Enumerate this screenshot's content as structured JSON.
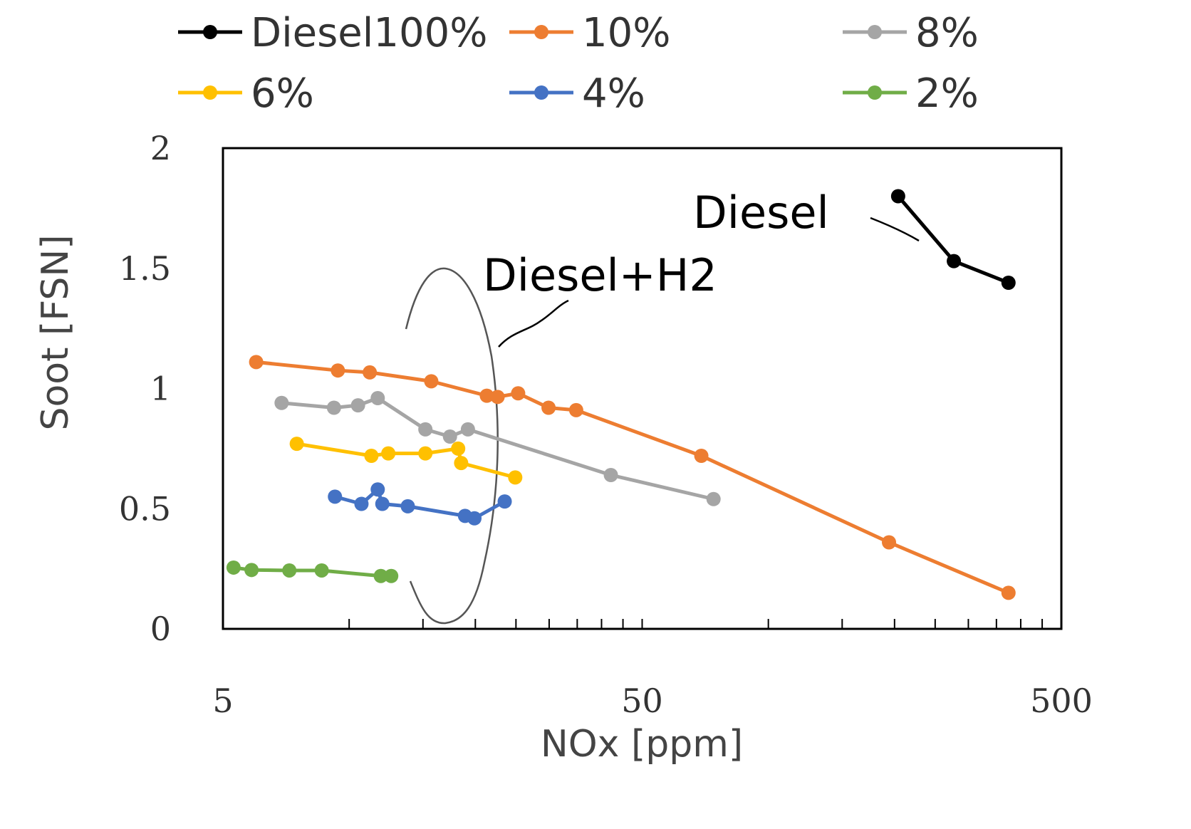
{
  "chart_data": {
    "type": "scatter",
    "xlabel": "NOx [ppm]",
    "ylabel": "Soot [FSN]",
    "xscale": "log",
    "xlim": [
      5,
      500
    ],
    "ylim": [
      0,
      2
    ],
    "xticks": [
      5,
      50,
      500
    ],
    "xtick_labels": [
      "5",
      "50",
      "500"
    ],
    "yticks": [
      0,
      0.5,
      1,
      1.5,
      2
    ],
    "ytick_labels": [
      "0",
      "0.5",
      "1",
      "1.5",
      "2"
    ],
    "grid": false,
    "legend_placement": "top",
    "series": [
      {
        "name": "Diesel100%",
        "color": "#000000",
        "x": [
          204,
          277,
          374
        ],
        "y": [
          1.8,
          1.53,
          1.44
        ]
      },
      {
        "name": "10%",
        "color": "#ED7D31",
        "x": [
          6.0,
          9.4,
          11.2,
          15.7,
          21.3,
          22.6,
          25.3,
          29.9,
          34.8,
          69.2,
          194,
          374
        ],
        "y": [
          1.11,
          1.075,
          1.067,
          1.03,
          0.97,
          0.965,
          0.98,
          0.92,
          0.91,
          0.72,
          0.36,
          0.15
        ]
      },
      {
        "name": "8%",
        "color": "#A5A5A5",
        "x": [
          6.9,
          9.2,
          10.5,
          11.7,
          15.2,
          17.4,
          19.2,
          42.1,
          74
        ],
        "y": [
          0.94,
          0.92,
          0.93,
          0.96,
          0.83,
          0.8,
          0.83,
          0.64,
          0.54
        ]
      },
      {
        "name": "6%",
        "color": "#FFC000",
        "x": [
          7.5,
          11.3,
          12.4,
          15.2,
          18.2,
          18.5,
          24.9
        ],
        "y": [
          0.77,
          0.72,
          0.73,
          0.73,
          0.75,
          0.69,
          0.63
        ]
      },
      {
        "name": "4%",
        "color": "#4472C4",
        "x": [
          9.25,
          10.7,
          11.7,
          12.0,
          13.8,
          18.9,
          19.9,
          23.5
        ],
        "y": [
          0.55,
          0.52,
          0.58,
          0.52,
          0.51,
          0.47,
          0.46,
          0.53
        ]
      },
      {
        "name": "2%",
        "color": "#70AD47",
        "x": [
          5.3,
          5.85,
          7.2,
          8.6,
          11.9,
          12.6
        ],
        "y": [
          0.255,
          0.245,
          0.243,
          0.243,
          0.22,
          0.22
        ]
      }
    ],
    "annotations": [
      {
        "text": "Diesel"
      },
      {
        "text": "Diesel+H2"
      }
    ]
  }
}
